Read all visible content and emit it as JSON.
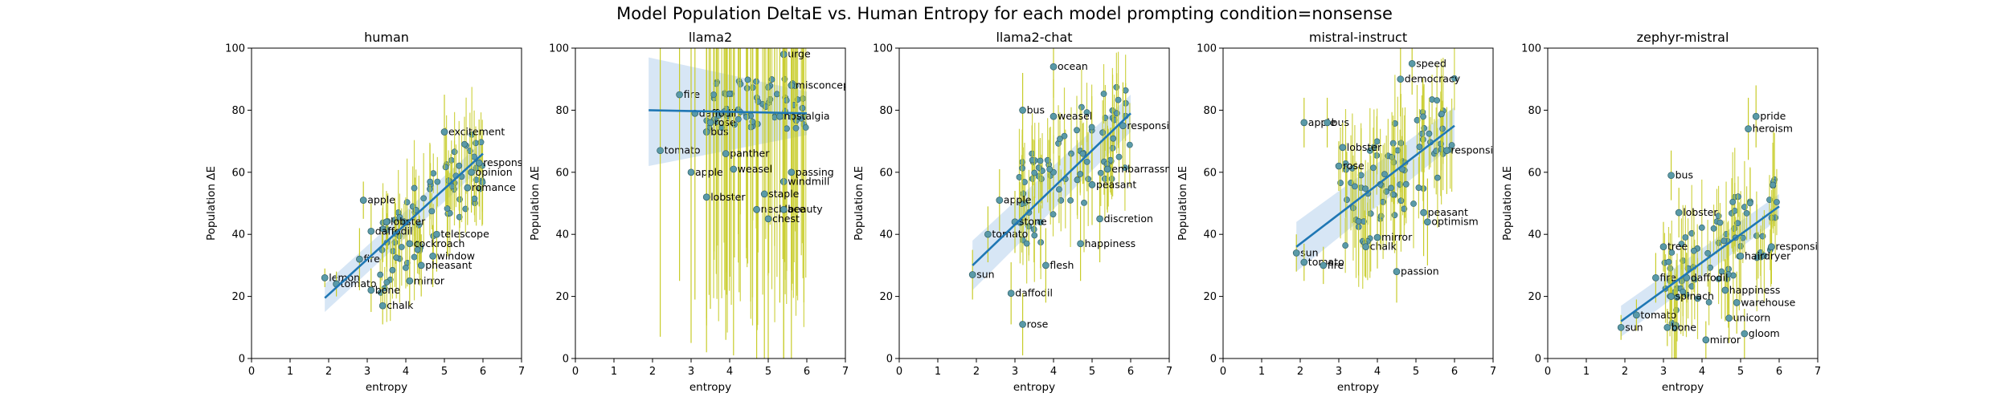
{
  "figure": {
    "suptitle": "Model Population DeltaE vs. Human Entropy for each model prompting condition=nonsense"
  },
  "colors": {
    "point_fill": "#5a9aa8",
    "point_edge": "#2f5f66",
    "error_bar": "#c8cc2a",
    "fit_line": "#1f77b4",
    "ci_band": "#a6c8e8",
    "axis": "#000000",
    "text": "#000000"
  },
  "chart_data": [
    {
      "type": "scatter",
      "title": "human",
      "xlabel": "entropy",
      "ylabel": "Population ΔE",
      "xlim": [
        0,
        7
      ],
      "ylim": [
        0,
        100
      ],
      "xticks": [
        0,
        1,
        2,
        3,
        4,
        5,
        6,
        7
      ],
      "yticks": [
        0,
        20,
        40,
        60,
        80,
        100
      ],
      "grid": false,
      "fit": {
        "x": [
          1.9,
          6.0
        ],
        "y": [
          19.5,
          66.0
        ],
        "ci_lo": [
          15.0,
          62.0
        ],
        "ci_hi": [
          24.0,
          70.0
        ]
      },
      "points": [
        {
          "label": "lemon",
          "x": 1.9,
          "y": 26,
          "err": 3
        },
        {
          "label": "tomato",
          "x": 2.2,
          "y": 24,
          "err": 4
        },
        {
          "label": "apple",
          "x": 2.9,
          "y": 51,
          "err": 6
        },
        {
          "label": "chalk",
          "x": 3.4,
          "y": 17,
          "err": 6
        },
        {
          "label": "bone",
          "x": 3.1,
          "y": 22,
          "err": 7
        },
        {
          "label": "mirror",
          "x": 4.1,
          "y": 25,
          "err": 8
        },
        {
          "label": "fire",
          "x": 2.8,
          "y": 32,
          "err": 10
        },
        {
          "label": "excitement",
          "x": 5.0,
          "y": 73,
          "err": 12
        },
        {
          "label": "responsibility",
          "x": 5.9,
          "y": 63,
          "err": 14
        },
        {
          "label": "telescope",
          "x": 4.8,
          "y": 40,
          "err": 12
        },
        {
          "label": "window",
          "x": 4.7,
          "y": 33,
          "err": 10
        },
        {
          "label": "pheasant",
          "x": 4.4,
          "y": 30,
          "err": 10
        },
        {
          "label": "cockroach",
          "x": 4.1,
          "y": 37,
          "err": 11
        },
        {
          "label": "lobster",
          "x": 3.5,
          "y": 44,
          "err": 9
        },
        {
          "label": "daffodil",
          "x": 3.1,
          "y": 41,
          "err": 9
        },
        {
          "label": "opinion",
          "x": 5.7,
          "y": 60,
          "err": 13
        },
        {
          "label": "romance",
          "x": 5.6,
          "y": 55,
          "err": 12
        }
      ],
      "dense_cloud": {
        "n": 80,
        "x_range": [
          3.3,
          6.0
        ],
        "y_center_at_x5": 52,
        "slope": 11.5,
        "y_spread": 12,
        "err_range": [
          5,
          16
        ]
      }
    },
    {
      "type": "scatter",
      "title": "llama2",
      "xlabel": "entropy",
      "ylabel": "Population ΔE",
      "xlim": [
        0,
        7
      ],
      "ylim": [
        0,
        100
      ],
      "xticks": [
        0,
        1,
        2,
        3,
        4,
        5,
        6,
        7
      ],
      "yticks": [
        0,
        20,
        40,
        60,
        80,
        100
      ],
      "grid": false,
      "fit": {
        "x": [
          1.9,
          6.0
        ],
        "y": [
          80.0,
          79.0
        ],
        "ci_lo": [
          62.0,
          72.0
        ],
        "ci_hi": [
          97.0,
          86.0
        ]
      },
      "points": [
        {
          "label": "tomato",
          "x": 2.2,
          "y": 67,
          "err": 60
        },
        {
          "label": "fire",
          "x": 2.7,
          "y": 85,
          "err": 60
        },
        {
          "label": "daffodil",
          "x": 3.1,
          "y": 79,
          "err": 60
        },
        {
          "label": "rose",
          "x": 3.5,
          "y": 76,
          "err": 60
        },
        {
          "label": "bus",
          "x": 3.4,
          "y": 73,
          "err": 60
        },
        {
          "label": "apple",
          "x": 3.0,
          "y": 60,
          "err": 55
        },
        {
          "label": "lobster",
          "x": 3.4,
          "y": 52,
          "err": 50
        },
        {
          "label": "urge",
          "x": 5.4,
          "y": 98,
          "err": 40
        },
        {
          "label": "misconception",
          "x": 5.6,
          "y": 88,
          "err": 60
        },
        {
          "label": "nostalgia",
          "x": 5.3,
          "y": 78,
          "err": 60
        },
        {
          "label": "passing",
          "x": 5.6,
          "y": 60,
          "err": 60
        },
        {
          "label": "windmill",
          "x": 5.4,
          "y": 57,
          "err": 60
        },
        {
          "label": "necklace",
          "x": 4.7,
          "y": 48,
          "err": 60
        },
        {
          "label": "beauty",
          "x": 5.4,
          "y": 48,
          "err": 60
        },
        {
          "label": "chest",
          "x": 5.0,
          "y": 45,
          "err": 60
        },
        {
          "label": "staple",
          "x": 4.9,
          "y": 53,
          "err": 60
        },
        {
          "label": "panther",
          "x": 3.9,
          "y": 66,
          "err": 60
        },
        {
          "label": "weasel",
          "x": 4.1,
          "y": 61,
          "err": 60
        }
      ],
      "dense_cloud": {
        "n": 70,
        "x_range": [
          3.4,
          6.0
        ],
        "y_center_at_x5": 82,
        "slope": 0,
        "y_spread": 8,
        "err_range": [
          40,
          70
        ]
      }
    },
    {
      "type": "scatter",
      "title": "llama2-chat",
      "xlabel": "entropy",
      "ylabel": "Population ΔE",
      "xlim": [
        0,
        7
      ],
      "ylim": [
        0,
        100
      ],
      "xticks": [
        0,
        1,
        2,
        3,
        4,
        5,
        6,
        7
      ],
      "yticks": [
        0,
        20,
        40,
        60,
        80,
        100
      ],
      "grid": false,
      "fit": {
        "x": [
          1.9,
          6.0
        ],
        "y": [
          30.0,
          79.0
        ],
        "ci_lo": [
          22.0,
          73.0
        ],
        "ci_hi": [
          38.0,
          85.0
        ]
      },
      "points": [
        {
          "label": "sun",
          "x": 1.9,
          "y": 27,
          "err": 8
        },
        {
          "label": "tomato",
          "x": 2.3,
          "y": 40,
          "err": 9
        },
        {
          "label": "apple",
          "x": 2.6,
          "y": 51,
          "err": 10
        },
        {
          "label": "daffodil",
          "x": 2.9,
          "y": 21,
          "err": 10
        },
        {
          "label": "rose",
          "x": 3.2,
          "y": 11,
          "err": 10
        },
        {
          "label": "flesh",
          "x": 3.8,
          "y": 30,
          "err": 12
        },
        {
          "label": "bus",
          "x": 3.2,
          "y": 80,
          "err": 12
        },
        {
          "label": "ocean",
          "x": 4.0,
          "y": 94,
          "err": 10
        },
        {
          "label": "discretion",
          "x": 5.2,
          "y": 45,
          "err": 14
        },
        {
          "label": "happiness",
          "x": 4.7,
          "y": 37,
          "err": 12
        },
        {
          "label": "responsibility",
          "x": 5.8,
          "y": 75,
          "err": 14
        },
        {
          "label": "embarrassment",
          "x": 5.4,
          "y": 61,
          "err": 14
        },
        {
          "label": "peasant",
          "x": 5.0,
          "y": 56,
          "err": 13
        },
        {
          "label": "weasel",
          "x": 4.0,
          "y": 78,
          "err": 12
        },
        {
          "label": "stone",
          "x": 3.0,
          "y": 44,
          "err": 10
        }
      ],
      "dense_cloud": {
        "n": 80,
        "x_range": [
          3.0,
          6.0
        ],
        "y_center_at_x5": 68,
        "slope": 11,
        "y_spread": 16,
        "err_range": [
          6,
          16
        ]
      }
    },
    {
      "type": "scatter",
      "title": "mistral-instruct",
      "xlabel": "entropy",
      "ylabel": "Population ΔE",
      "xlim": [
        0,
        7
      ],
      "ylim": [
        0,
        100
      ],
      "xticks": [
        0,
        1,
        2,
        3,
        4,
        5,
        6,
        7
      ],
      "yticks": [
        0,
        20,
        40,
        60,
        80,
        100
      ],
      "grid": false,
      "fit": {
        "x": [
          1.9,
          6.0
        ],
        "y": [
          36.0,
          75.0
        ],
        "ci_lo": [
          28.0,
          69.0
        ],
        "ci_hi": [
          44.0,
          81.0
        ]
      },
      "points": [
        {
          "label": "sun",
          "x": 1.9,
          "y": 34,
          "err": 6
        },
        {
          "label": "tomato",
          "x": 2.1,
          "y": 31,
          "err": 6
        },
        {
          "label": "fire",
          "x": 2.6,
          "y": 30,
          "err": 6
        },
        {
          "label": "apple",
          "x": 2.1,
          "y": 76,
          "err": 8
        },
        {
          "label": "bus",
          "x": 2.7,
          "y": 76,
          "err": 8
        },
        {
          "label": "rose",
          "x": 3.0,
          "y": 62,
          "err": 8
        },
        {
          "label": "passion",
          "x": 4.5,
          "y": 28,
          "err": 10
        },
        {
          "label": "chalk",
          "x": 3.7,
          "y": 36,
          "err": 10
        },
        {
          "label": "mirror",
          "x": 4.0,
          "y": 39,
          "err": 10
        },
        {
          "label": "speed",
          "x": 4.9,
          "y": 95,
          "err": 10
        },
        {
          "label": "democracy",
          "x": 4.6,
          "y": 90,
          "err": 12
        },
        {
          "label": "responsibility",
          "x": 5.8,
          "y": 67,
          "err": 14
        },
        {
          "label": "peasant",
          "x": 5.2,
          "y": 47,
          "err": 14
        },
        {
          "label": "optimism",
          "x": 5.3,
          "y": 44,
          "err": 14
        },
        {
          "label": "lobster",
          "x": 3.1,
          "y": 68,
          "err": 8
        }
      ],
      "dense_cloud": {
        "n": 80,
        "x_range": [
          3.0,
          6.0
        ],
        "y_center_at_x5": 65,
        "slope": 9.5,
        "y_spread": 16,
        "err_range": [
          8,
          20
        ]
      }
    },
    {
      "type": "scatter",
      "title": "zephyr-mistral",
      "xlabel": "entropy",
      "ylabel": "Population ΔE",
      "xlim": [
        0,
        7
      ],
      "ylim": [
        0,
        100
      ],
      "xticks": [
        0,
        1,
        2,
        3,
        4,
        5,
        6,
        7
      ],
      "yticks": [
        0,
        20,
        40,
        60,
        80,
        100
      ],
      "grid": false,
      "fit": {
        "x": [
          1.9,
          6.0
        ],
        "y": [
          12.0,
          49.0
        ],
        "ci_lo": [
          7.0,
          45.0
        ],
        "ci_hi": [
          17.0,
          53.0
        ]
      },
      "points": [
        {
          "label": "sun",
          "x": 1.9,
          "y": 10,
          "err": 4
        },
        {
          "label": "tomato",
          "x": 2.3,
          "y": 14,
          "err": 5
        },
        {
          "label": "bone",
          "x": 3.1,
          "y": 10,
          "err": 6
        },
        {
          "label": "mirror",
          "x": 4.1,
          "y": 6,
          "err": 6
        },
        {
          "label": "gloom",
          "x": 5.1,
          "y": 8,
          "err": 8
        },
        {
          "label": "unicorn",
          "x": 4.7,
          "y": 13,
          "err": 8
        },
        {
          "label": "pride",
          "x": 5.4,
          "y": 78,
          "err": 10
        },
        {
          "label": "heroism",
          "x": 5.2,
          "y": 74,
          "err": 10
        },
        {
          "label": "bus",
          "x": 3.2,
          "y": 59,
          "err": 8
        },
        {
          "label": "fire",
          "x": 2.8,
          "y": 26,
          "err": 8
        },
        {
          "label": "tree",
          "x": 3.0,
          "y": 36,
          "err": 8
        },
        {
          "label": "spinach",
          "x": 3.2,
          "y": 20,
          "err": 8
        },
        {
          "label": "lobster",
          "x": 3.4,
          "y": 47,
          "err": 8
        },
        {
          "label": "warehouse",
          "x": 4.9,
          "y": 18,
          "err": 10
        },
        {
          "label": "responsibility",
          "x": 5.8,
          "y": 36,
          "err": 12
        },
        {
          "label": "hairdryer",
          "x": 5.0,
          "y": 33,
          "err": 10
        },
        {
          "label": "daffodil",
          "x": 3.6,
          "y": 26,
          "err": 8
        },
        {
          "label": "happiness",
          "x": 4.6,
          "y": 22,
          "err": 10
        }
      ],
      "dense_cloud": {
        "n": 80,
        "x_range": [
          3.0,
          6.0
        ],
        "y_center_at_x5": 40,
        "slope": 10,
        "y_spread": 14,
        "err_range": [
          6,
          18
        ]
      }
    }
  ]
}
